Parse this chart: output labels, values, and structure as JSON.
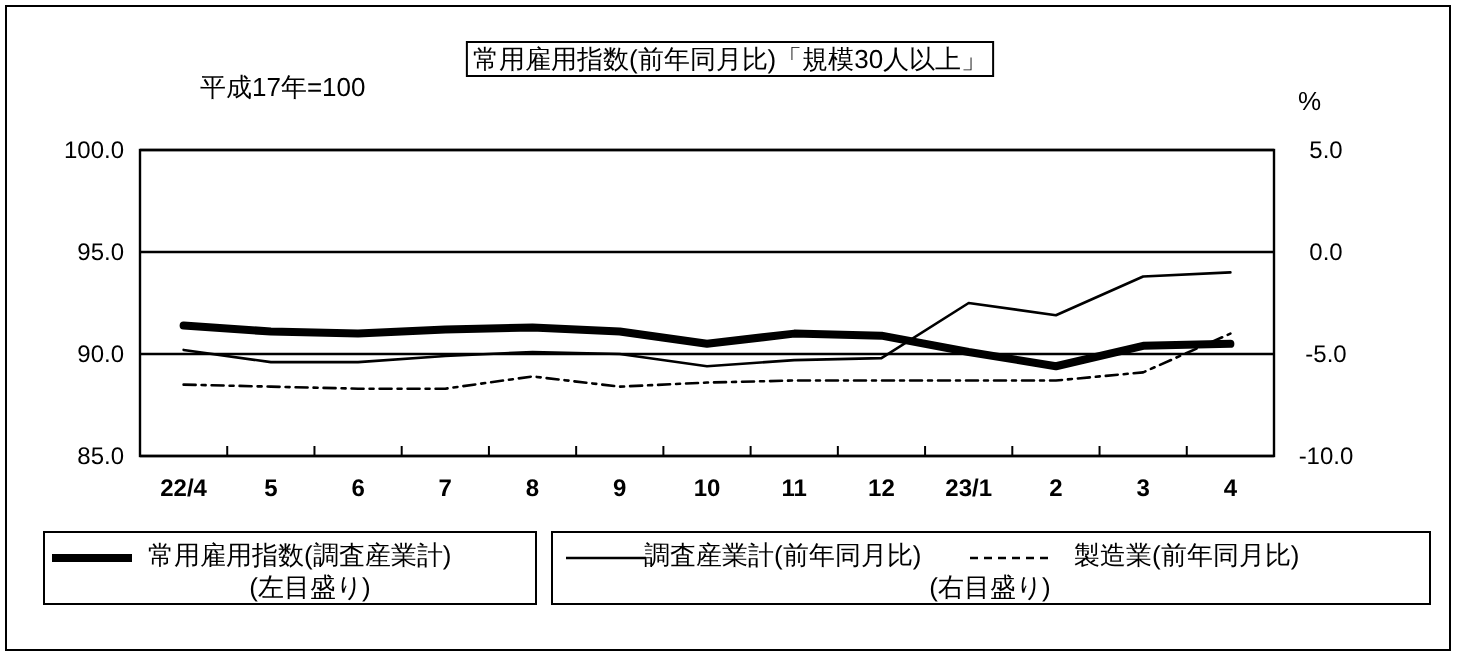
{
  "chart_data": {
    "type": "line",
    "title": "常用雇用指数(前年同月比)「規模30人以上」",
    "categories": [
      "22/4",
      "5",
      "6",
      "7",
      "8",
      "9",
      "10",
      "11",
      "12",
      "23/1",
      "2",
      "3",
      "4"
    ],
    "series": [
      {
        "name": "常用雇用指数(調査産業計)",
        "color": "#000000",
        "line_style": "solid",
        "values": [
          91.4,
          91.1,
          91.0,
          91.2,
          91.3,
          91.1,
          90.5,
          91.0,
          90.9,
          90.1,
          89.4,
          90.4,
          90.5
        ]
      },
      {
        "name": "調査産業計(前年同月比)",
        "color": "#000000",
        "line_style": "solid",
        "axis": "y2",
        "values": [
          -4.8,
          -5.4,
          -5.4,
          -5.1,
          -4.9,
          -5.0,
          -5.6,
          -5.3,
          -5.2,
          -2.5,
          -3.1,
          -1.2,
          -1.0
        ]
      },
      {
        "name": "製造業(前年同月比)",
        "color": "#000000",
        "line_style": "dashed",
        "axis": "y2",
        "values": [
          -6.5,
          -6.6,
          -6.7,
          -6.7,
          -6.1,
          -6.6,
          -6.4,
          -6.3,
          -6.3,
          -6.3,
          -6.3,
          -5.9,
          -4.0
        ]
      }
    ],
    "ylim": [
      85,
      100
    ],
    "yticks": [
      {
        "value": 85,
        "label": "85.0"
      },
      {
        "value": 90,
        "label": "90.0"
      },
      {
        "value": 95,
        "label": "95.0"
      },
      {
        "value": 100,
        "label": "100.0"
      }
    ],
    "y2lim": [
      -10,
      5
    ],
    "y2ticks": [
      {
        "value": -10,
        "label": "-10.0"
      },
      {
        "value": -5,
        "label": "-5.0"
      },
      {
        "value": 0,
        "label": "0.0"
      },
      {
        "value": 5,
        "label": "5.0"
      }
    ],
    "y2label": "%",
    "annotations": [
      "平成17年=100",
      "(左目盛り)",
      "(右目盛り)"
    ],
    "grid": "y",
    "legend": "bottom",
    "marker": "none"
  }
}
